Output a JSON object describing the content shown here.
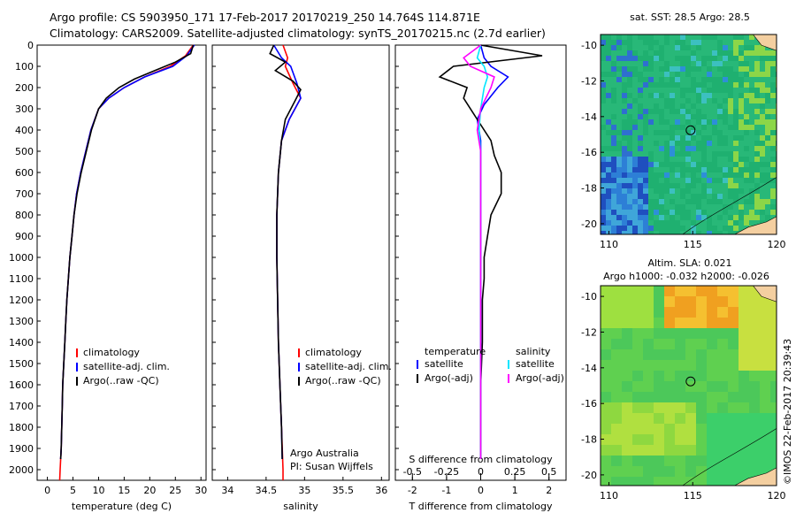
{
  "header": {
    "line1": "Argo profile: CS 5903950_171 17-Feb-2017 20170219_250 14.764S 114.871E",
    "line2": "Climatology: CARS2009. Satellite-adjusted climatology: synTS_20170215.nc (2.7d earlier)"
  },
  "colors": {
    "climatology": "#ff0000",
    "satellite": "#0000ff",
    "argo": "#000000",
    "sat_salinity": "#00e5ff",
    "argo_salinity_adj": "#ff00ff"
  },
  "chart_data": [
    {
      "type": "line",
      "xlabel": "temperature (deg C)",
      "ylabel": "",
      "xlim": [
        -2,
        31
      ],
      "ylim": [
        2050,
        0
      ],
      "xticks": [
        "0",
        "5",
        "10",
        "15",
        "20",
        "25",
        "30"
      ],
      "yticks": [
        "0",
        "100",
        "200",
        "300",
        "400",
        "500",
        "600",
        "700",
        "800",
        "900",
        "1000",
        "1100",
        "1200",
        "1300",
        "1400",
        "1500",
        "1600",
        "1700",
        "1800",
        "1900",
        "2000"
      ],
      "legend": [
        "climatology",
        "satellite-adj. clim.",
        "Argo(..raw -QC)"
      ],
      "series": [
        {
          "name": "climatology",
          "color": "#ff0000",
          "points": [
            [
              28.5,
              0
            ],
            [
              27,
              50
            ],
            [
              24,
              100
            ],
            [
              19,
              150
            ],
            [
              15,
              200
            ],
            [
              12,
              250
            ],
            [
              10,
              300
            ],
            [
              8.5,
              400
            ],
            [
              7.5,
              500
            ],
            [
              6.5,
              600
            ],
            [
              5.7,
              700
            ],
            [
              5.2,
              800
            ],
            [
              4.8,
              900
            ],
            [
              4.4,
              1000
            ],
            [
              4.1,
              1100
            ],
            [
              3.8,
              1200
            ],
            [
              3.6,
              1300
            ],
            [
              3.4,
              1400
            ],
            [
              3.2,
              1500
            ],
            [
              3.0,
              1600
            ],
            [
              2.9,
              1700
            ],
            [
              2.8,
              1800
            ],
            [
              2.7,
              1900
            ],
            [
              2.5,
              2000
            ],
            [
              2.4,
              2050
            ]
          ]
        },
        {
          "name": "satellite-adj. clim.",
          "color": "#0000ff",
          "points": [
            [
              28.7,
              0
            ],
            [
              27.2,
              50
            ],
            [
              24.5,
              100
            ],
            [
              19,
              150
            ],
            [
              15,
              200
            ],
            [
              12,
              250
            ],
            [
              10,
              300
            ],
            [
              8.5,
              400
            ],
            [
              7.5,
              500
            ],
            [
              6.5,
              600
            ],
            [
              5.7,
              700
            ],
            [
              5.2,
              800
            ],
            [
              4.8,
              900
            ],
            [
              4.4,
              1000
            ],
            [
              4.1,
              1100
            ],
            [
              3.8,
              1200
            ],
            [
              3.6,
              1300
            ],
            [
              3.4,
              1400
            ],
            [
              3.2,
              1500
            ],
            [
              3.0,
              1600
            ],
            [
              2.9,
              1700
            ],
            [
              2.8,
              1800
            ],
            [
              2.7,
              1900
            ],
            [
              2.6,
              1950
            ]
          ]
        },
        {
          "name": "Argo(..raw -QC)",
          "color": "#000000",
          "points": [
            [
              28.5,
              0
            ],
            [
              28,
              40
            ],
            [
              25,
              80
            ],
            [
              21,
              120
            ],
            [
              17,
              160
            ],
            [
              14,
              200
            ],
            [
              11.5,
              250
            ],
            [
              10,
              300
            ],
            [
              8.6,
              400
            ],
            [
              7.6,
              500
            ],
            [
              6.6,
              600
            ],
            [
              5.8,
              700
            ],
            [
              5.2,
              800
            ],
            [
              4.8,
              900
            ],
            [
              4.4,
              1000
            ],
            [
              4.1,
              1100
            ],
            [
              3.8,
              1200
            ],
            [
              3.6,
              1300
            ],
            [
              3.4,
              1400
            ],
            [
              3.2,
              1500
            ],
            [
              3.0,
              1600
            ],
            [
              2.9,
              1700
            ],
            [
              2.8,
              1800
            ],
            [
              2.7,
              1900
            ],
            [
              2.6,
              1950
            ]
          ]
        }
      ]
    },
    {
      "type": "line",
      "xlabel": "salinity",
      "xlim": [
        33.8,
        36.1
      ],
      "ylim": [
        2050,
        0
      ],
      "xticks": [
        "34",
        "34.5",
        "35",
        "35.5",
        "36"
      ],
      "legend": [
        "climatology",
        "satellite-adj. clim.",
        "Argo(..raw -QC)"
      ],
      "annotation": [
        "Argo Australia",
        "PI: Susan Wijffels"
      ],
      "series": [
        {
          "name": "climatology",
          "color": "#ff0000",
          "points": [
            [
              34.72,
              0
            ],
            [
              34.78,
              60
            ],
            [
              34.75,
              100
            ],
            [
              34.85,
              180
            ],
            [
              34.95,
              250
            ],
            [
              34.8,
              350
            ],
            [
              34.7,
              450
            ],
            [
              34.66,
              600
            ],
            [
              34.64,
              800
            ],
            [
              34.64,
              1000
            ],
            [
              34.65,
              1200
            ],
            [
              34.66,
              1400
            ],
            [
              34.68,
              1600
            ],
            [
              34.7,
              1800
            ],
            [
              34.72,
              2000
            ],
            [
              34.72,
              2050
            ]
          ]
        },
        {
          "name": "satellite-adj. clim.",
          "color": "#0000ff",
          "points": [
            [
              34.6,
              0
            ],
            [
              34.7,
              60
            ],
            [
              34.82,
              100
            ],
            [
              34.9,
              180
            ],
            [
              34.95,
              250
            ],
            [
              34.8,
              350
            ],
            [
              34.7,
              450
            ],
            [
              34.66,
              600
            ],
            [
              34.64,
              800
            ],
            [
              34.64,
              1000
            ],
            [
              34.65,
              1200
            ],
            [
              34.66,
              1400
            ],
            [
              34.68,
              1600
            ],
            [
              34.7,
              1800
            ],
            [
              34.71,
              1950
            ]
          ]
        },
        {
          "name": "Argo(..raw -QC)",
          "color": "#000000",
          "points": [
            [
              34.6,
              0
            ],
            [
              34.55,
              40
            ],
            [
              34.75,
              80
            ],
            [
              34.62,
              120
            ],
            [
              34.85,
              170
            ],
            [
              34.95,
              210
            ],
            [
              34.88,
              260
            ],
            [
              34.75,
              350
            ],
            [
              34.7,
              450
            ],
            [
              34.66,
              600
            ],
            [
              34.64,
              800
            ],
            [
              34.64,
              1000
            ],
            [
              34.65,
              1200
            ],
            [
              34.66,
              1400
            ],
            [
              34.68,
              1600
            ],
            [
              34.7,
              1800
            ],
            [
              34.71,
              1950
            ]
          ]
        }
      ]
    },
    {
      "type": "line",
      "xlabel": "T difference from climatology",
      "xlabel2": "S difference from climatology",
      "xlim": [
        -2.5,
        2.5
      ],
      "ylim": [
        2050,
        0
      ],
      "xticks": [
        "-2",
        "-1",
        "0",
        "1",
        "2"
      ],
      "xticks2": [
        "-0.5",
        "-0.25",
        "0",
        "0.25",
        "0.5"
      ],
      "legend_headers": [
        "temperature",
        "salinity"
      ],
      "legend": [
        "satellite",
        "Argo(-adj)",
        "satellite",
        "Argo(-adj)"
      ],
      "series": [
        {
          "name": "satellite",
          "color": "#0000ff",
          "points": [
            [
              0,
              0
            ],
            [
              0.1,
              60
            ],
            [
              0.3,
              100
            ],
            [
              0.8,
              150
            ],
            [
              0.5,
              200
            ],
            [
              0.1,
              280
            ],
            [
              -0.1,
              350
            ],
            [
              0,
              450
            ],
            [
              0,
              600
            ],
            [
              0,
              800
            ],
            [
              0,
              1000
            ],
            [
              0,
              1200
            ],
            [
              0,
              1400
            ],
            [
              0,
              1600
            ],
            [
              0,
              1800
            ],
            [
              0,
              1950
            ]
          ]
        },
        {
          "name": "Argo(-adj)",
          "color": "#000000",
          "points": [
            [
              0,
              0
            ],
            [
              1.8,
              50
            ],
            [
              -0.8,
              100
            ],
            [
              -1.2,
              150
            ],
            [
              -0.4,
              200
            ],
            [
              -0.5,
              250
            ],
            [
              -0.1,
              350
            ],
            [
              0.3,
              450
            ],
            [
              0.4,
              520
            ],
            [
              0.6,
              600
            ],
            [
              0.6,
              700
            ],
            [
              0.3,
              800
            ],
            [
              0.2,
              900
            ],
            [
              0.1,
              1000
            ],
            [
              0.1,
              1100
            ],
            [
              0.05,
              1200
            ],
            [
              0.05,
              1400
            ],
            [
              0,
              1600
            ],
            [
              0,
              1800
            ],
            [
              0,
              1950
            ]
          ]
        },
        {
          "name": "satellite",
          "color": "#00e5ff",
          "points": [
            [
              0,
              0
            ],
            [
              -0.1,
              60
            ],
            [
              0.1,
              100
            ],
            [
              0.2,
              150
            ],
            [
              0.1,
              200
            ],
            [
              0,
              300
            ],
            [
              -0.05,
              400
            ],
            [
              0,
              500
            ],
            [
              0,
              800
            ],
            [
              0,
              1200
            ],
            [
              0,
              1600
            ],
            [
              0,
              1950
            ]
          ]
        },
        {
          "name": "Argo(-adj)",
          "color": "#ff00ff",
          "points": [
            [
              0,
              0
            ],
            [
              -0.5,
              60
            ],
            [
              -0.3,
              100
            ],
            [
              0.4,
              150
            ],
            [
              0.3,
              200
            ],
            [
              0,
              300
            ],
            [
              -0.1,
              400
            ],
            [
              0,
              500
            ],
            [
              0,
              800
            ],
            [
              0,
              1200
            ],
            [
              0,
              1600
            ],
            [
              0,
              1950
            ]
          ]
        }
      ]
    },
    {
      "type": "heatmap",
      "title": "sat. SST: 28.5 Argo: 28.5",
      "xlim": [
        109.5,
        120
      ],
      "ylim": [
        -20.6,
        -9.4
      ],
      "xticks": [
        "110",
        "115",
        "120"
      ],
      "yticks": [
        "-10",
        "-12",
        "-14",
        "-16",
        "-18",
        "-20"
      ],
      "marker": [
        114.871,
        -14.764
      ]
    },
    {
      "type": "heatmap",
      "title": "Altim. SLA: 0.021",
      "subtitle": "Argo h1000: -0.032 h2000: -0.026",
      "xlim": [
        109.5,
        120
      ],
      "ylim": [
        -20.6,
        -9.4
      ],
      "xticks": [
        "110",
        "115",
        "120"
      ],
      "yticks": [
        "-10",
        "-12",
        "-14",
        "-16",
        "-18",
        "-20"
      ],
      "marker": [
        114.871,
        -14.764
      ]
    }
  ],
  "credit": "©IMOS 22-Feb-2017 20:39:43"
}
